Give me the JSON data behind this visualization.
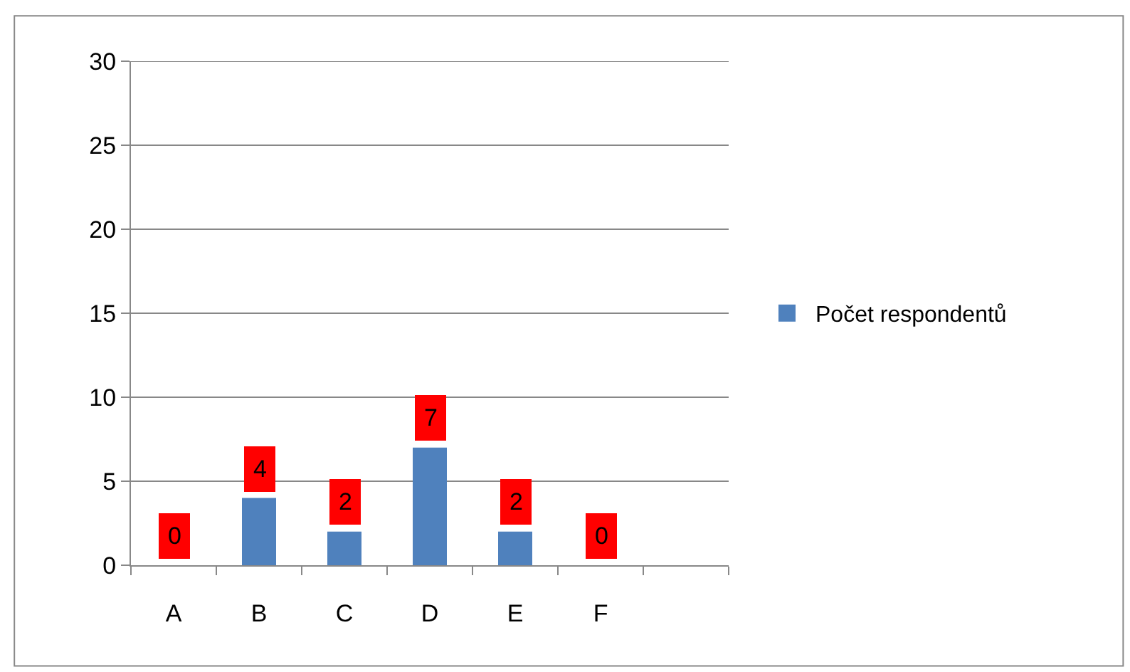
{
  "chart_data": {
    "type": "bar",
    "categories": [
      "A",
      "B",
      "C",
      "D",
      "E",
      "F",
      null
    ],
    "series": [
      {
        "name": "Počet respondentů",
        "color": "#4f81bd",
        "values": [
          0,
          4,
          2,
          7,
          2,
          0,
          null
        ]
      }
    ],
    "ylim": [
      0,
      30
    ],
    "yticks": [
      0,
      5,
      10,
      15,
      20,
      25,
      30
    ],
    "grid": "y",
    "legend": "right",
    "data_labels": true
  }
}
